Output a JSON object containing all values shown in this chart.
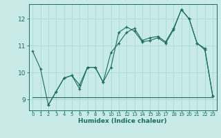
{
  "xlabel": "Humidex (Indice chaleur)",
  "background_color": "#c8ebe8",
  "grid_color": "#a8d8d4",
  "line_color": "#1a6b60",
  "xlim": [
    -0.5,
    23.5
  ],
  "ylim": [
    8.6,
    12.55
  ],
  "xticks": [
    0,
    1,
    2,
    3,
    4,
    5,
    6,
    7,
    8,
    9,
    10,
    11,
    12,
    13,
    14,
    15,
    16,
    17,
    18,
    19,
    20,
    21,
    22,
    23
  ],
  "yticks": [
    9,
    10,
    11,
    12
  ],
  "series1_x": [
    0,
    1,
    2,
    3,
    4,
    5,
    6,
    7,
    8,
    9,
    10,
    11,
    12,
    13,
    14,
    15,
    16,
    17,
    18,
    19,
    20,
    21,
    22,
    23
  ],
  "series1_y": [
    10.8,
    10.15,
    8.8,
    9.3,
    9.8,
    9.9,
    9.4,
    10.2,
    10.2,
    9.65,
    10.2,
    11.5,
    11.7,
    11.55,
    11.15,
    11.2,
    11.3,
    11.1,
    11.6,
    12.35,
    12.0,
    11.1,
    10.9,
    9.15
  ],
  "series2_x": [
    0,
    1,
    2,
    3,
    4,
    5,
    6,
    7,
    8,
    9,
    10,
    11,
    12,
    13,
    14,
    15,
    16,
    17,
    18,
    19,
    20,
    21,
    22,
    23
  ],
  "series2_y": [
    9.1,
    9.1,
    9.1,
    9.1,
    9.1,
    9.1,
    9.1,
    9.1,
    9.1,
    9.1,
    9.1,
    9.1,
    9.1,
    9.1,
    9.1,
    9.1,
    9.1,
    9.1,
    9.1,
    9.1,
    9.1,
    9.1,
    9.1,
    9.1
  ],
  "series3_x": [
    2,
    3,
    4,
    5,
    6,
    7,
    8,
    9,
    10,
    11,
    12,
    13,
    14,
    15,
    16,
    17,
    18,
    19,
    20,
    21,
    22,
    23
  ],
  "series3_y": [
    8.8,
    9.3,
    9.8,
    9.9,
    9.55,
    10.2,
    10.2,
    9.65,
    10.75,
    11.1,
    11.5,
    11.65,
    11.2,
    11.3,
    11.35,
    11.15,
    11.65,
    12.35,
    12.0,
    11.1,
    10.85,
    9.15
  ]
}
